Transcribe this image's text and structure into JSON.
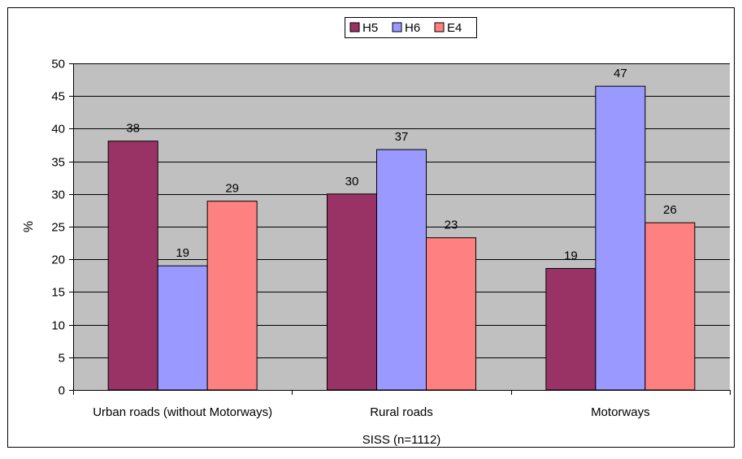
{
  "chart_data": {
    "type": "bar",
    "categories": [
      "Urban roads (without Motorways)",
      "Rural roads",
      "Motorways"
    ],
    "series": [
      {
        "name": "H5",
        "values": [
          38.1,
          30.0,
          18.6
        ],
        "labels": [
          "38",
          "30",
          "19"
        ],
        "color": "#993366"
      },
      {
        "name": "H6",
        "values": [
          19.0,
          36.8,
          46.5
        ],
        "labels": [
          "19",
          "37",
          "47"
        ],
        "color": "#9999ff"
      },
      {
        "name": "E4",
        "values": [
          28.9,
          23.3,
          25.6
        ],
        "labels": [
          "29",
          "23",
          "26"
        ],
        "color": "#ff8080"
      }
    ],
    "xlabel": "SISS (n=1112)",
    "ylabel": "%",
    "ylim": [
      0,
      50
    ],
    "yticks": [
      "0",
      "5",
      "10",
      "15",
      "20",
      "25",
      "30",
      "35",
      "40",
      "45",
      "50"
    ],
    "grid": true,
    "legend": "top-center",
    "plot_background": "#c0c0c0"
  }
}
